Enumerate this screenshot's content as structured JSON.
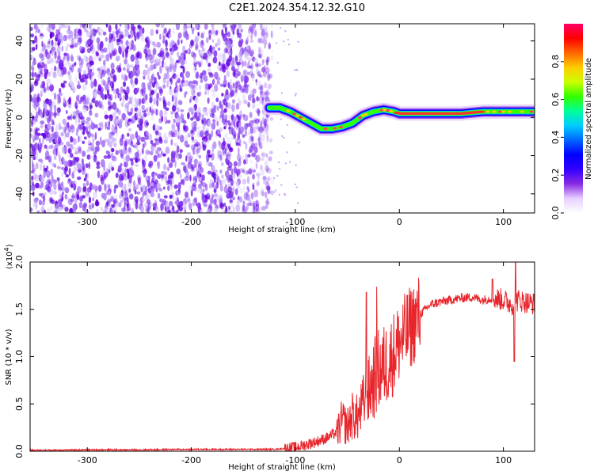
{
  "title": "C2E1.2024.354.12.32.G10",
  "chart_data": [
    {
      "type": "heatmap",
      "xlabel": "Height of straight line (km)",
      "ylabel": "Frequency (Hz)",
      "xlim": [
        -355,
        130
      ],
      "ylim": [
        -50,
        49
      ],
      "xticks": [
        -300,
        -200,
        -100,
        0,
        100
      ],
      "yticks": [
        -40,
        -20,
        0,
        20,
        40
      ],
      "colorbar": {
        "label": "Normalized spectral amplitude",
        "range": [
          0,
          1
        ],
        "ticks": [
          "0.0",
          "0.2",
          "0.4",
          "0.6",
          "0.8"
        ],
        "colors": [
          "#ffffff",
          "#e6d0ff",
          "#8a2be2",
          "#3300ff",
          "#0000ff",
          "#0066ff",
          "#00ccff",
          "#00ff99",
          "#33ff00",
          "#ccff00",
          "#ffcc00",
          "#ff6600",
          "#ff0000",
          "#ff0066"
        ]
      },
      "noise_region_x": [
        -355,
        -122
      ],
      "signal_trace": {
        "x": [
          -125,
          -115,
          -105,
          -95,
          -85,
          -75,
          -65,
          -55,
          -45,
          -35,
          -25,
          -15,
          -5,
          0,
          10,
          30,
          60,
          80,
          100,
          130
        ],
        "y": [
          5,
          5,
          3,
          0,
          -3,
          -6,
          -6,
          -5,
          -3,
          1,
          3,
          4,
          3,
          2,
          2,
          2,
          2,
          3,
          3,
          3
        ]
      }
    },
    {
      "type": "line",
      "xlabel": "Height of straight line (km)",
      "ylabel": "SNR (10 * v/v)",
      "exponent_label": "(x10",
      "exponent_power": "4",
      "exponent_close": ")",
      "xlim": [
        -355,
        130
      ],
      "ylim": [
        0,
        2.0
      ],
      "xticks": [
        -300,
        -200,
        -100,
        0,
        100
      ],
      "yticks": [
        "0.0",
        "0.5",
        "1.0",
        "1.5",
        "2.0"
      ],
      "color": "#e8252b",
      "series": [
        {
          "x": [
            -355,
            -300,
            -250,
            -200,
            -150,
            -120,
            -100,
            -90,
            -80,
            -70,
            -60,
            -55,
            -50,
            -45,
            -40,
            -35,
            -30,
            -25,
            -20,
            -15,
            -10,
            -5,
            0,
            5,
            10,
            20,
            30,
            40,
            50,
            60,
            70,
            80,
            90,
            100,
            105,
            110,
            112,
            115,
            120,
            130
          ],
          "y": [
            0.01,
            0.015,
            0.015,
            0.02,
            0.02,
            0.02,
            0.04,
            0.07,
            0.1,
            0.14,
            0.2,
            0.32,
            0.26,
            0.38,
            0.35,
            0.5,
            0.62,
            0.75,
            0.85,
            0.9,
            0.95,
            1.05,
            1.15,
            1.22,
            1.3,
            1.45,
            1.55,
            1.58,
            1.6,
            1.62,
            1.63,
            1.6,
            1.62,
            1.6,
            1.57,
            1.55,
            1.58,
            1.6,
            1.58,
            1.56
          ]
        }
      ]
    }
  ]
}
